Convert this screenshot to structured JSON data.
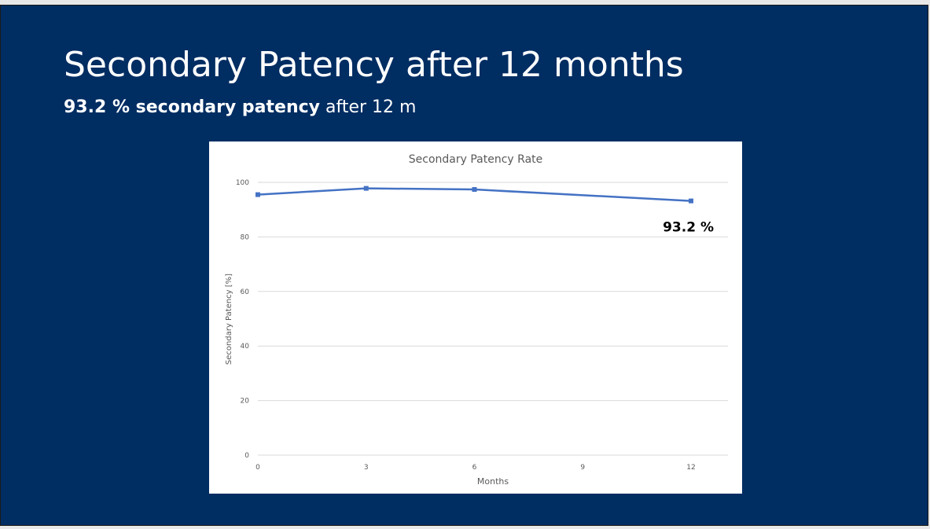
{
  "slide": {
    "title": "Secondary Patency after 12 months",
    "subtitle_bold": "93.2 % secondary patency",
    "subtitle_rest": " after 12 m",
    "background_color": "#002d62",
    "text_color": "#ffffff"
  },
  "chart_data": {
    "type": "line",
    "title": "Secondary Patency Rate",
    "xlabel": "Months",
    "ylabel": "Secondary Patency [%]",
    "x": [
      0,
      3,
      6,
      9,
      12
    ],
    "x_ticks": [
      "0",
      "3",
      "6",
      "9",
      "12"
    ],
    "ylim": [
      0,
      100
    ],
    "y_ticks": [
      "0",
      "20",
      "40",
      "60",
      "80",
      "100"
    ],
    "grid": true,
    "legend": "none",
    "series": [
      {
        "color": "#4472c4",
        "points": [
          {
            "x": 0,
            "y": 95.5
          },
          {
            "x": 3,
            "y": 97.8
          },
          {
            "x": 6,
            "y": 97.4
          },
          {
            "x": 12,
            "y": 93.2
          }
        ]
      }
    ],
    "annotation": {
      "text": "93.2 %",
      "x": 12,
      "y": 93.2
    }
  }
}
